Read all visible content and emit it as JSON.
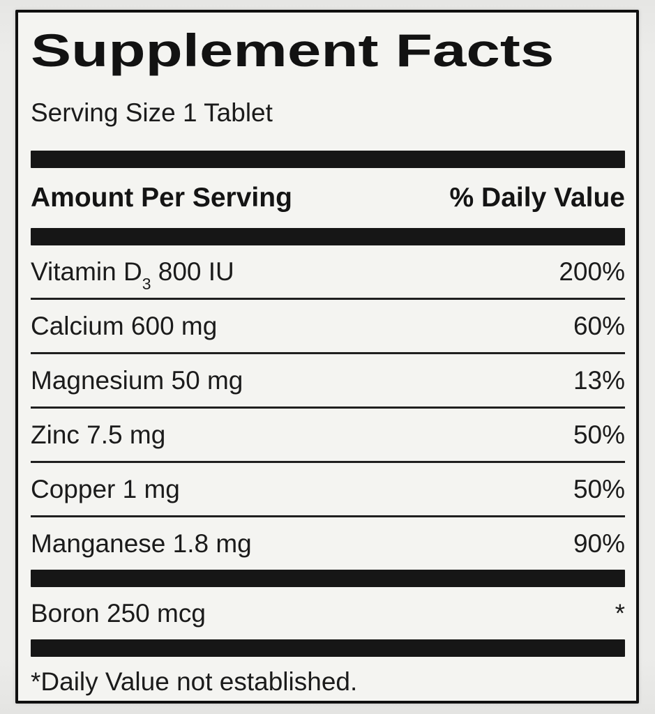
{
  "label": {
    "title": "Supplement Facts",
    "serving_size": "Serving Size 1 Tablet",
    "columns": {
      "amount": "Amount Per Serving",
      "dv": "% Daily Value"
    },
    "rows": [
      {
        "pre": "Vitamin D",
        "sub": "3",
        "post": " 800 IU",
        "dv": "200%"
      },
      {
        "pre": "Calcium 600 mg",
        "sub": "",
        "post": "",
        "dv": "60%"
      },
      {
        "pre": "Magnesium 50 mg",
        "sub": "",
        "post": "",
        "dv": "13%"
      },
      {
        "pre": "Zinc 7.5 mg",
        "sub": "",
        "post": "",
        "dv": "50%"
      },
      {
        "pre": "Copper 1 mg",
        "sub": "",
        "post": "",
        "dv": "50%"
      },
      {
        "pre": "Manganese 1.8 mg",
        "sub": "",
        "post": "",
        "dv": "90%"
      },
      {
        "pre": "Boron 250 mcg",
        "sub": "",
        "post": "",
        "dv": "*"
      }
    ],
    "footnote": "*Daily Value not established.",
    "colors": {
      "ink": "#161616",
      "label_bg": "#f4f4f1",
      "page_bg": "#e9e9e7"
    }
  }
}
